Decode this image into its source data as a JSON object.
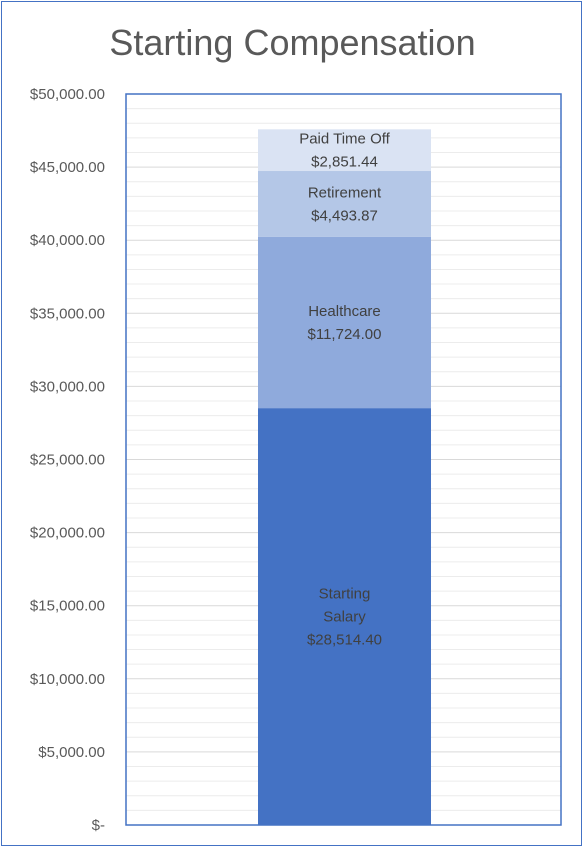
{
  "chart_data": {
    "type": "bar",
    "stacked": true,
    "title": "Starting Compensation",
    "ylim": [
      0,
      50000
    ],
    "y_tick_labels": [
      "$-",
      "$5,000.00",
      "$10,000.00",
      "$15,000.00",
      "$20,000.00",
      "$25,000.00",
      "$30,000.00",
      "$35,000.00",
      "$40,000.00",
      "$45,000.00",
      "$50,000.00"
    ],
    "gridlines": true,
    "series": [
      {
        "name": "Starting Salary",
        "value": 28514.4,
        "label_lines": [
          "Starting",
          "Salary",
          "$28,514.40"
        ],
        "color": "#4472c4"
      },
      {
        "name": "Healthcare",
        "value": 11724.0,
        "label_lines": [
          "Healthcare",
          "$11,724.00"
        ],
        "color": "#8faadc"
      },
      {
        "name": "Retirement",
        "value": 4493.87,
        "label_lines": [
          "Retirement",
          "$4,493.87"
        ],
        "color": "#b4c7e7"
      },
      {
        "name": "Paid Time Off",
        "value": 2851.44,
        "label_lines": [
          "Paid Time Off",
          "$2,851.44"
        ],
        "color": "#dae3f3"
      }
    ]
  }
}
